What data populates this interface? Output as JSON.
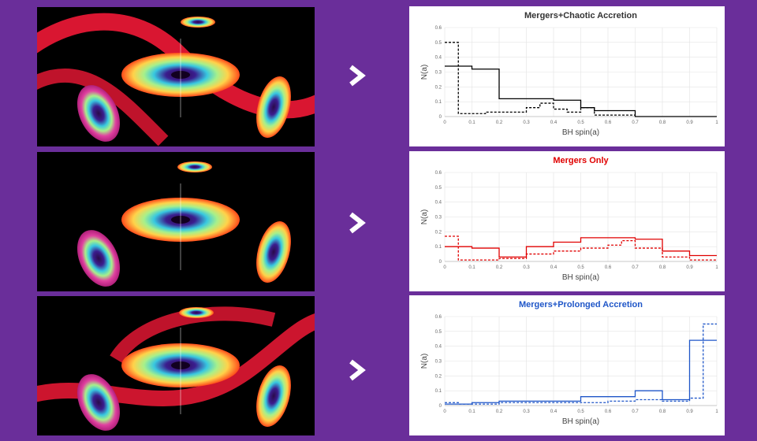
{
  "nav": {
    "arrow_icon": "chevron-right-icon"
  },
  "colors": {
    "background": "#6a2e9a",
    "arrow": "#ffffff",
    "black_series": "#000000",
    "red_series": "#e00000",
    "blue_series": "#1f56c8"
  },
  "images": [
    {
      "description_icon": "black-hole-merger-illustration"
    },
    {
      "description_icon": "black-hole-merger-illustration"
    },
    {
      "description_icon": "black-hole-merger-illustration"
    }
  ],
  "chart_data": [
    {
      "type": "line",
      "title": "Mergers+Chaotic Accretion",
      "title_color": "#333333",
      "xlabel": "BH spin(a)",
      "ylabel": "N(a)",
      "xlim": [
        0,
        1
      ],
      "ylim": [
        0,
        0.6
      ],
      "xticks": [
        "0",
        "0.1",
        "0.2",
        "0.3",
        "0.4",
        "0.5",
        "0.6",
        "0.7",
        "0.8",
        "0.9",
        "1"
      ],
      "yticks": [
        "0",
        "0.1",
        "0.2",
        "0.3",
        "0.4",
        "0.5",
        "0.6"
      ],
      "series": [
        {
          "name": "solid",
          "style": "solid",
          "color": "#000000",
          "edges": [
            0,
            0.05,
            0.1,
            0.2,
            0.3,
            0.4,
            0.5,
            0.55,
            0.7,
            1.0
          ],
          "values": [
            0.34,
            0.34,
            0.32,
            0.12,
            0.12,
            0.11,
            0.06,
            0.04,
            0.0
          ]
        },
        {
          "name": "dashed",
          "style": "dashed",
          "color": "#000000",
          "edges": [
            0,
            0.05,
            0.1,
            0.15,
            0.25,
            0.3,
            0.35,
            0.4,
            0.45,
            0.5,
            0.55,
            0.7
          ],
          "values": [
            0.5,
            0.02,
            0.02,
            0.03,
            0.03,
            0.06,
            0.09,
            0.05,
            0.03,
            0.06,
            0.01
          ]
        }
      ]
    },
    {
      "type": "line",
      "title": "Mergers Only",
      "title_color": "#e00000",
      "xlabel": "BH spin(a)",
      "ylabel": "N(a)",
      "xlim": [
        0,
        1
      ],
      "ylim": [
        0,
        0.6
      ],
      "xticks": [
        "0",
        "0.1",
        "0.2",
        "0.3",
        "0.4",
        "0.5",
        "0.6",
        "0.7",
        "0.8",
        "0.9",
        "1"
      ],
      "yticks": [
        "0",
        "0.1",
        "0.2",
        "0.3",
        "0.4",
        "0.5",
        "0.6"
      ],
      "series": [
        {
          "name": "solid",
          "style": "solid",
          "color": "#e00000",
          "edges": [
            0,
            0.1,
            0.2,
            0.3,
            0.4,
            0.5,
            0.6,
            0.7,
            0.8,
            0.9,
            1.0
          ],
          "values": [
            0.1,
            0.09,
            0.03,
            0.1,
            0.13,
            0.16,
            0.16,
            0.15,
            0.07,
            0.04
          ]
        },
        {
          "name": "dashed",
          "style": "dashed",
          "color": "#e00000",
          "edges": [
            0,
            0.05,
            0.1,
            0.2,
            0.3,
            0.4,
            0.5,
            0.6,
            0.65,
            0.7,
            0.8,
            0.9,
            1.0
          ],
          "values": [
            0.17,
            0.01,
            0.01,
            0.02,
            0.05,
            0.07,
            0.09,
            0.11,
            0.14,
            0.09,
            0.03,
            0.01
          ]
        }
      ]
    },
    {
      "type": "line",
      "title": "Mergers+Prolonged Accretion",
      "title_color": "#1f56c8",
      "xlabel": "BH spin(a)",
      "ylabel": "N(a)",
      "xlim": [
        0,
        1
      ],
      "ylim": [
        0,
        0.6
      ],
      "xticks": [
        "0",
        "0.1",
        "0.2",
        "0.3",
        "0.4",
        "0.5",
        "0.6",
        "0.7",
        "0.8",
        "0.9",
        "1"
      ],
      "yticks": [
        "0",
        "0.1",
        "0.2",
        "0.3",
        "0.4",
        "0.5",
        "0.6"
      ],
      "series": [
        {
          "name": "solid",
          "style": "solid",
          "color": "#1f56c8",
          "edges": [
            0,
            0.05,
            0.1,
            0.2,
            0.3,
            0.4,
            0.5,
            0.6,
            0.7,
            0.8,
            0.9,
            1.0
          ],
          "values": [
            0.01,
            0.01,
            0.02,
            0.03,
            0.03,
            0.03,
            0.06,
            0.06,
            0.1,
            0.04,
            0.44
          ]
        },
        {
          "name": "dashed",
          "style": "dashed",
          "color": "#1f56c8",
          "edges": [
            0,
            0.05,
            0.1,
            0.2,
            0.3,
            0.4,
            0.5,
            0.6,
            0.7,
            0.8,
            0.9,
            0.95,
            1.0
          ],
          "values": [
            0.02,
            0.01,
            0.01,
            0.02,
            0.02,
            0.02,
            0.02,
            0.03,
            0.04,
            0.03,
            0.05,
            0.55
          ]
        }
      ]
    }
  ]
}
